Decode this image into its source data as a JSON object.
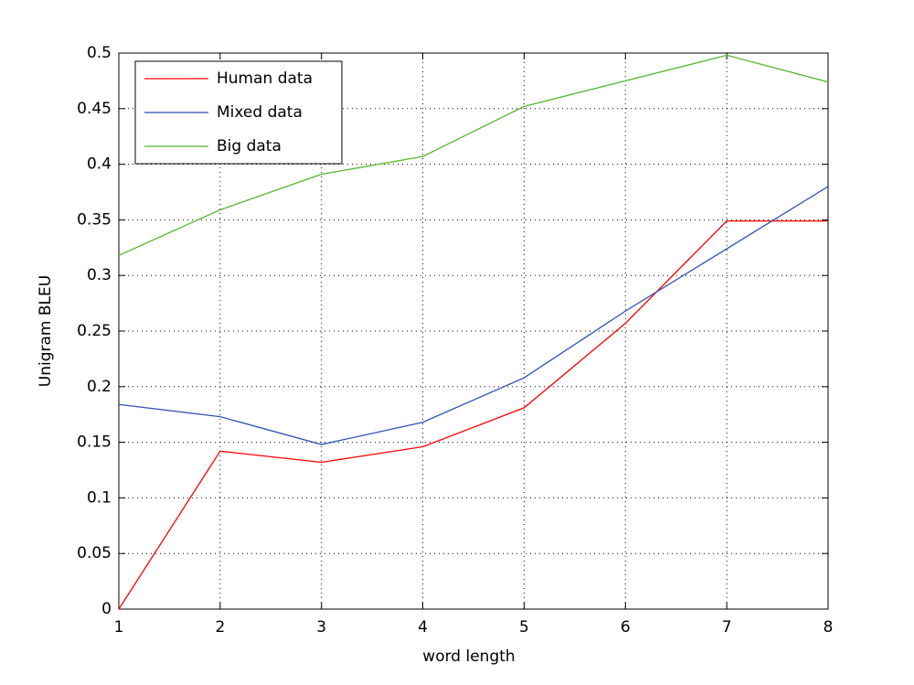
{
  "chart_data": {
    "type": "line",
    "x_label": "word length",
    "y_label": "Unigram BLEU",
    "x": [
      1,
      2,
      3,
      4,
      5,
      6,
      7,
      8
    ],
    "series": [
      {
        "name": "Human data",
        "color": "#ff0000",
        "values": [
          0,
          0.142,
          0.132,
          0.146,
          0.181,
          0.257,
          0.349,
          0.349
        ]
      },
      {
        "name": "Mixed data",
        "color": "#2f4fb5",
        "values": [
          0.184,
          0.173,
          0.148,
          0.168,
          0.208,
          0.268,
          0.324,
          0.38
        ]
      },
      {
        "name": "Big data",
        "color": "#55b52c",
        "values": [
          0.318,
          0.359,
          0.391,
          0.407,
          0.452,
          0.475,
          0.498,
          0.474
        ]
      }
    ],
    "xlim": [
      1,
      8
    ],
    "xticks": [
      1,
      2,
      3,
      4,
      5,
      6,
      7,
      8
    ],
    "ylim": [
      0,
      0.5
    ],
    "yticks": [
      0,
      0.05,
      0.1,
      0.15,
      0.2,
      0.25,
      0.3,
      0.35,
      0.4,
      0.45,
      0.5
    ],
    "grid": true,
    "legend": "top-left"
  }
}
